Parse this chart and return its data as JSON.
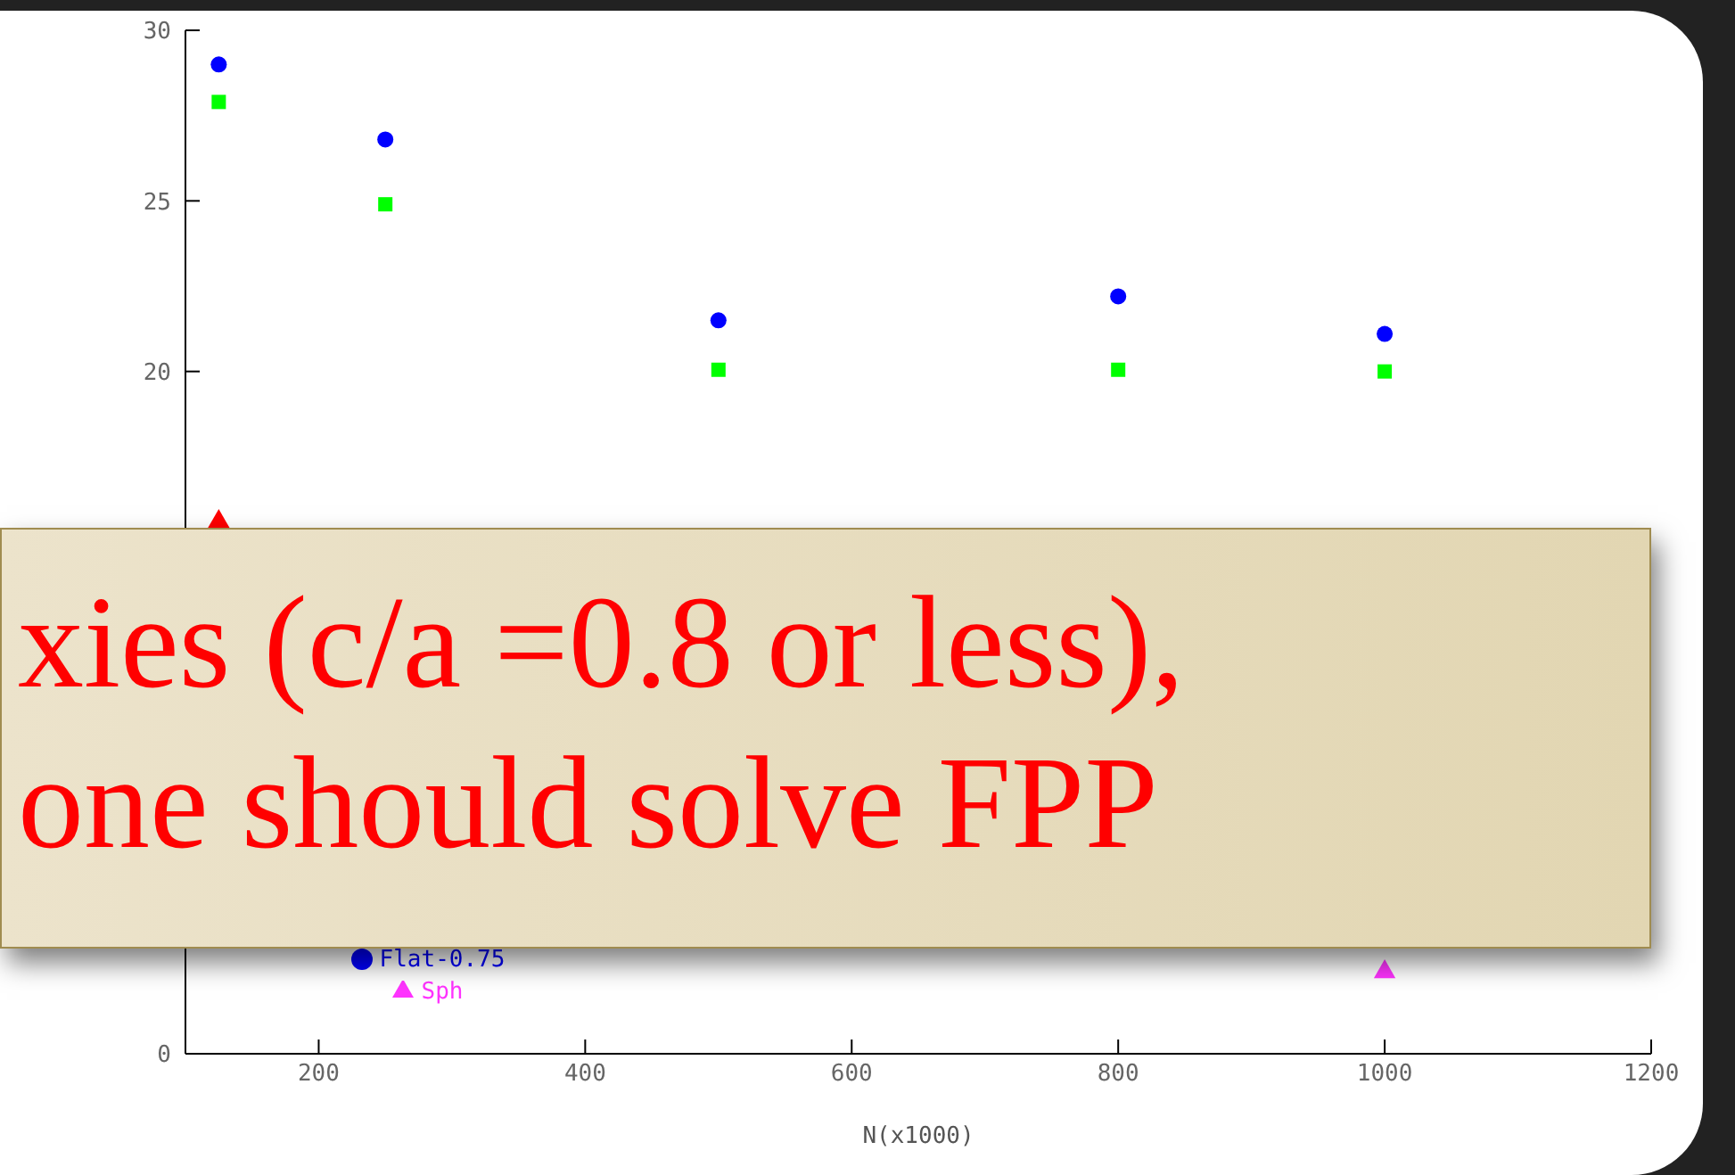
{
  "chart_data": {
    "type": "scatter",
    "xlabel": "N(x1000)",
    "x": [
      125,
      250,
      500,
      800,
      1000
    ],
    "series": [
      {
        "name": "Flat-0.75",
        "color": "#0000ff",
        "marker": "circle",
        "values": [
          29.0,
          26.8,
          21.5,
          22.2,
          21.1
        ]
      },
      {
        "color": "#00ff00",
        "marker": "square",
        "values": [
          27.9,
          24.9,
          20.05,
          20.05,
          20.0
        ]
      },
      {
        "color": "#ff0000",
        "marker": "triangle",
        "values": [
          15.6,
          null,
          null,
          null,
          null
        ]
      },
      {
        "name": "Sph",
        "color": "#ff33ff",
        "marker": "triangle",
        "values": [
          null,
          null,
          null,
          null,
          2.4
        ]
      }
    ],
    "xlim": [
      100,
      1200
    ],
    "xticks": [
      200,
      400,
      600,
      800,
      1000,
      1200
    ],
    "ylim": [
      0,
      30
    ],
    "yticks": [
      0,
      20,
      25,
      30
    ],
    "grid": false,
    "legend": "bottom left",
    "annotations": [
      "xies (c/a =0.8 or less),",
      "one should solve FPP"
    ]
  }
}
